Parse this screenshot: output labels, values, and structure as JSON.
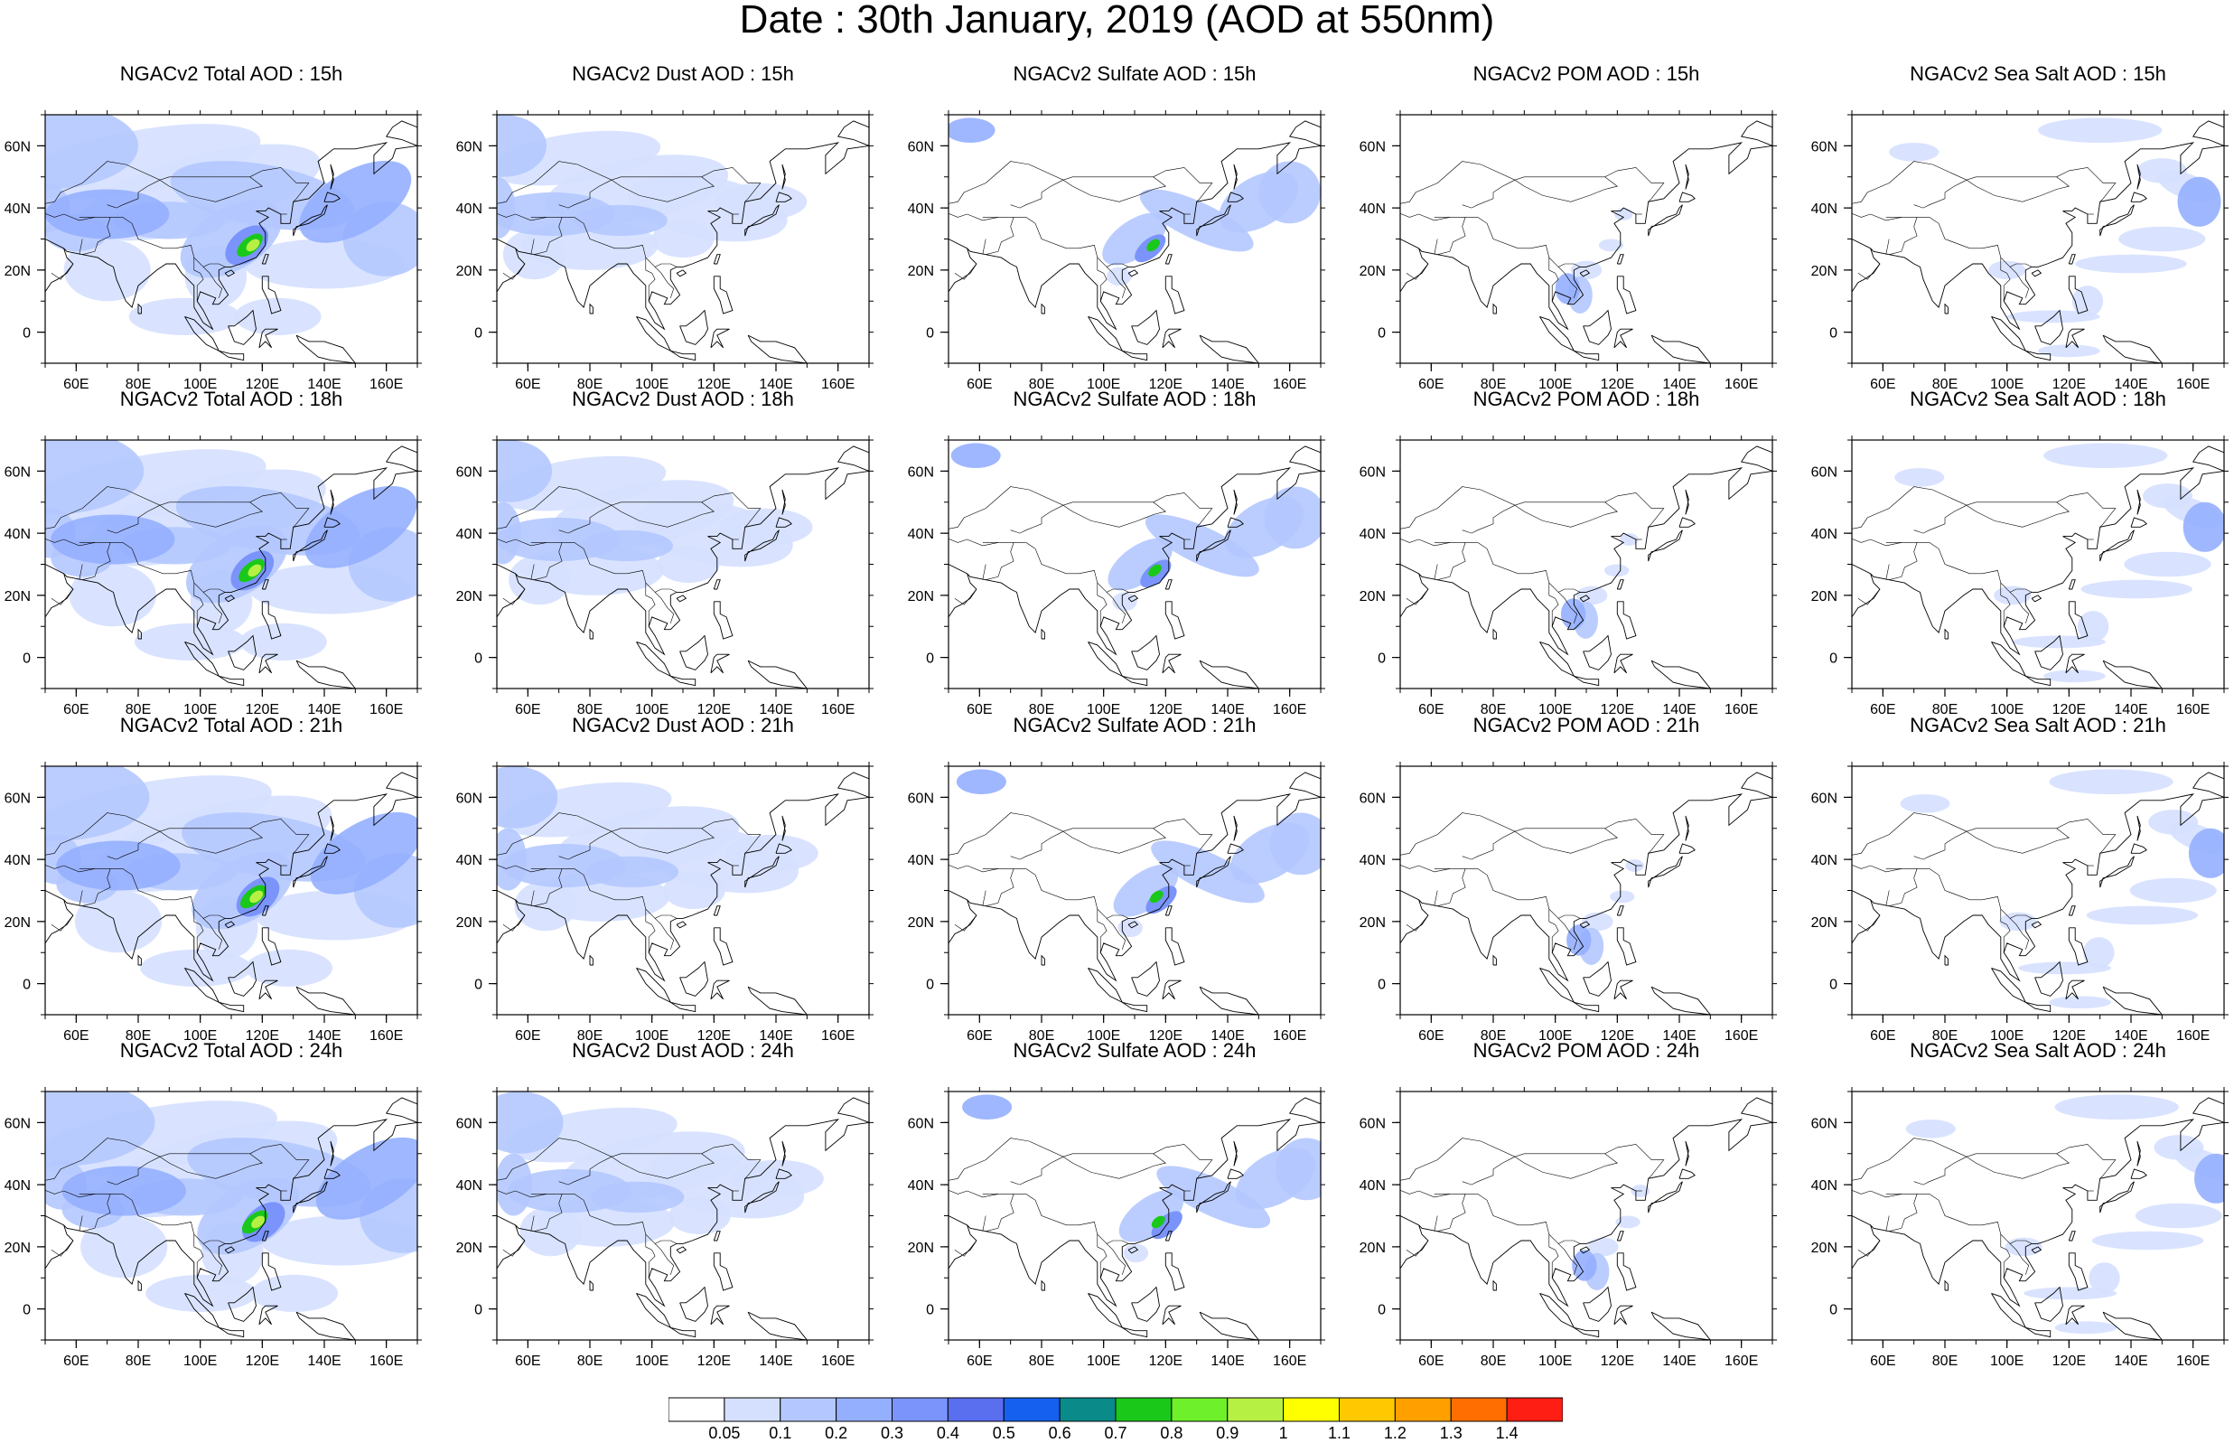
{
  "title": "Date : 30th January, 2019 (AOD at 550nm)",
  "map": {
    "lon_range": [
      50,
      170
    ],
    "lat_range": [
      -10,
      70
    ],
    "lon_ticks": [
      60,
      80,
      100,
      120,
      140,
      160
    ],
    "lon_tick_labels": [
      "60E",
      "80E",
      "100E",
      "120E",
      "140E",
      "160E"
    ],
    "lat_ticks": [
      0,
      20,
      40,
      60
    ],
    "lat_tick_labels": [
      "0",
      "20N",
      "40N",
      "60N"
    ]
  },
  "panels": [
    {
      "title": "NGACv2 Total AOD : 15h",
      "species": "total",
      "hour": 15
    },
    {
      "title": "NGACv2 Dust AOD : 15h",
      "species": "dust",
      "hour": 15
    },
    {
      "title": "NGACv2 Sulfate AOD : 15h",
      "species": "sulfate",
      "hour": 15
    },
    {
      "title": "NGACv2 POM AOD : 15h",
      "species": "pom",
      "hour": 15
    },
    {
      "title": "NGACv2 Sea Salt AOD : 15h",
      "species": "seasalt",
      "hour": 15
    },
    {
      "title": "NGACv2 Total AOD : 18h",
      "species": "total",
      "hour": 18
    },
    {
      "title": "NGACv2 Dust AOD : 18h",
      "species": "dust",
      "hour": 18
    },
    {
      "title": "NGACv2 Sulfate AOD : 18h",
      "species": "sulfate",
      "hour": 18
    },
    {
      "title": "NGACv2 POM AOD : 18h",
      "species": "pom",
      "hour": 18
    },
    {
      "title": "NGACv2 Sea Salt AOD : 18h",
      "species": "seasalt",
      "hour": 18
    },
    {
      "title": "NGACv2 Total AOD : 21h",
      "species": "total",
      "hour": 21
    },
    {
      "title": "NGACv2 Dust AOD : 21h",
      "species": "dust",
      "hour": 21
    },
    {
      "title": "NGACv2 Sulfate AOD : 21h",
      "species": "sulfate",
      "hour": 21
    },
    {
      "title": "NGACv2 POM AOD : 21h",
      "species": "pom",
      "hour": 21
    },
    {
      "title": "NGACv2 Sea Salt AOD : 21h",
      "species": "seasalt",
      "hour": 21
    },
    {
      "title": "NGACv2 Total AOD : 24h",
      "species": "total",
      "hour": 24
    },
    {
      "title": "NGACv2 Dust AOD : 24h",
      "species": "dust",
      "hour": 24
    },
    {
      "title": "NGACv2 Sulfate AOD : 24h",
      "species": "sulfate",
      "hour": 24
    },
    {
      "title": "NGACv2 POM AOD : 24h",
      "species": "pom",
      "hour": 24
    },
    {
      "title": "NGACv2 Sea Salt  AOD : 24h",
      "species": "seasalt",
      "hour": 24
    }
  ],
  "colorbar": {
    "labels": [
      "0.05",
      "0.1",
      "0.2",
      "0.3",
      "0.4",
      "0.5",
      "0.6",
      "0.7",
      "0.8",
      "0.9",
      "1",
      "1.1",
      "1.2",
      "1.3",
      "1.4"
    ],
    "colors": [
      "#ffffff",
      "#d5e0ff",
      "#b4c8ff",
      "#95afff",
      "#7b94fb",
      "#5a6ef0",
      "#1660ef",
      "#0b8a8a",
      "#1ac81a",
      "#6ef02a",
      "#b6f043",
      "#ffff00",
      "#ffc800",
      "#ffa000",
      "#ff6e00",
      "#ff1e14"
    ]
  }
}
